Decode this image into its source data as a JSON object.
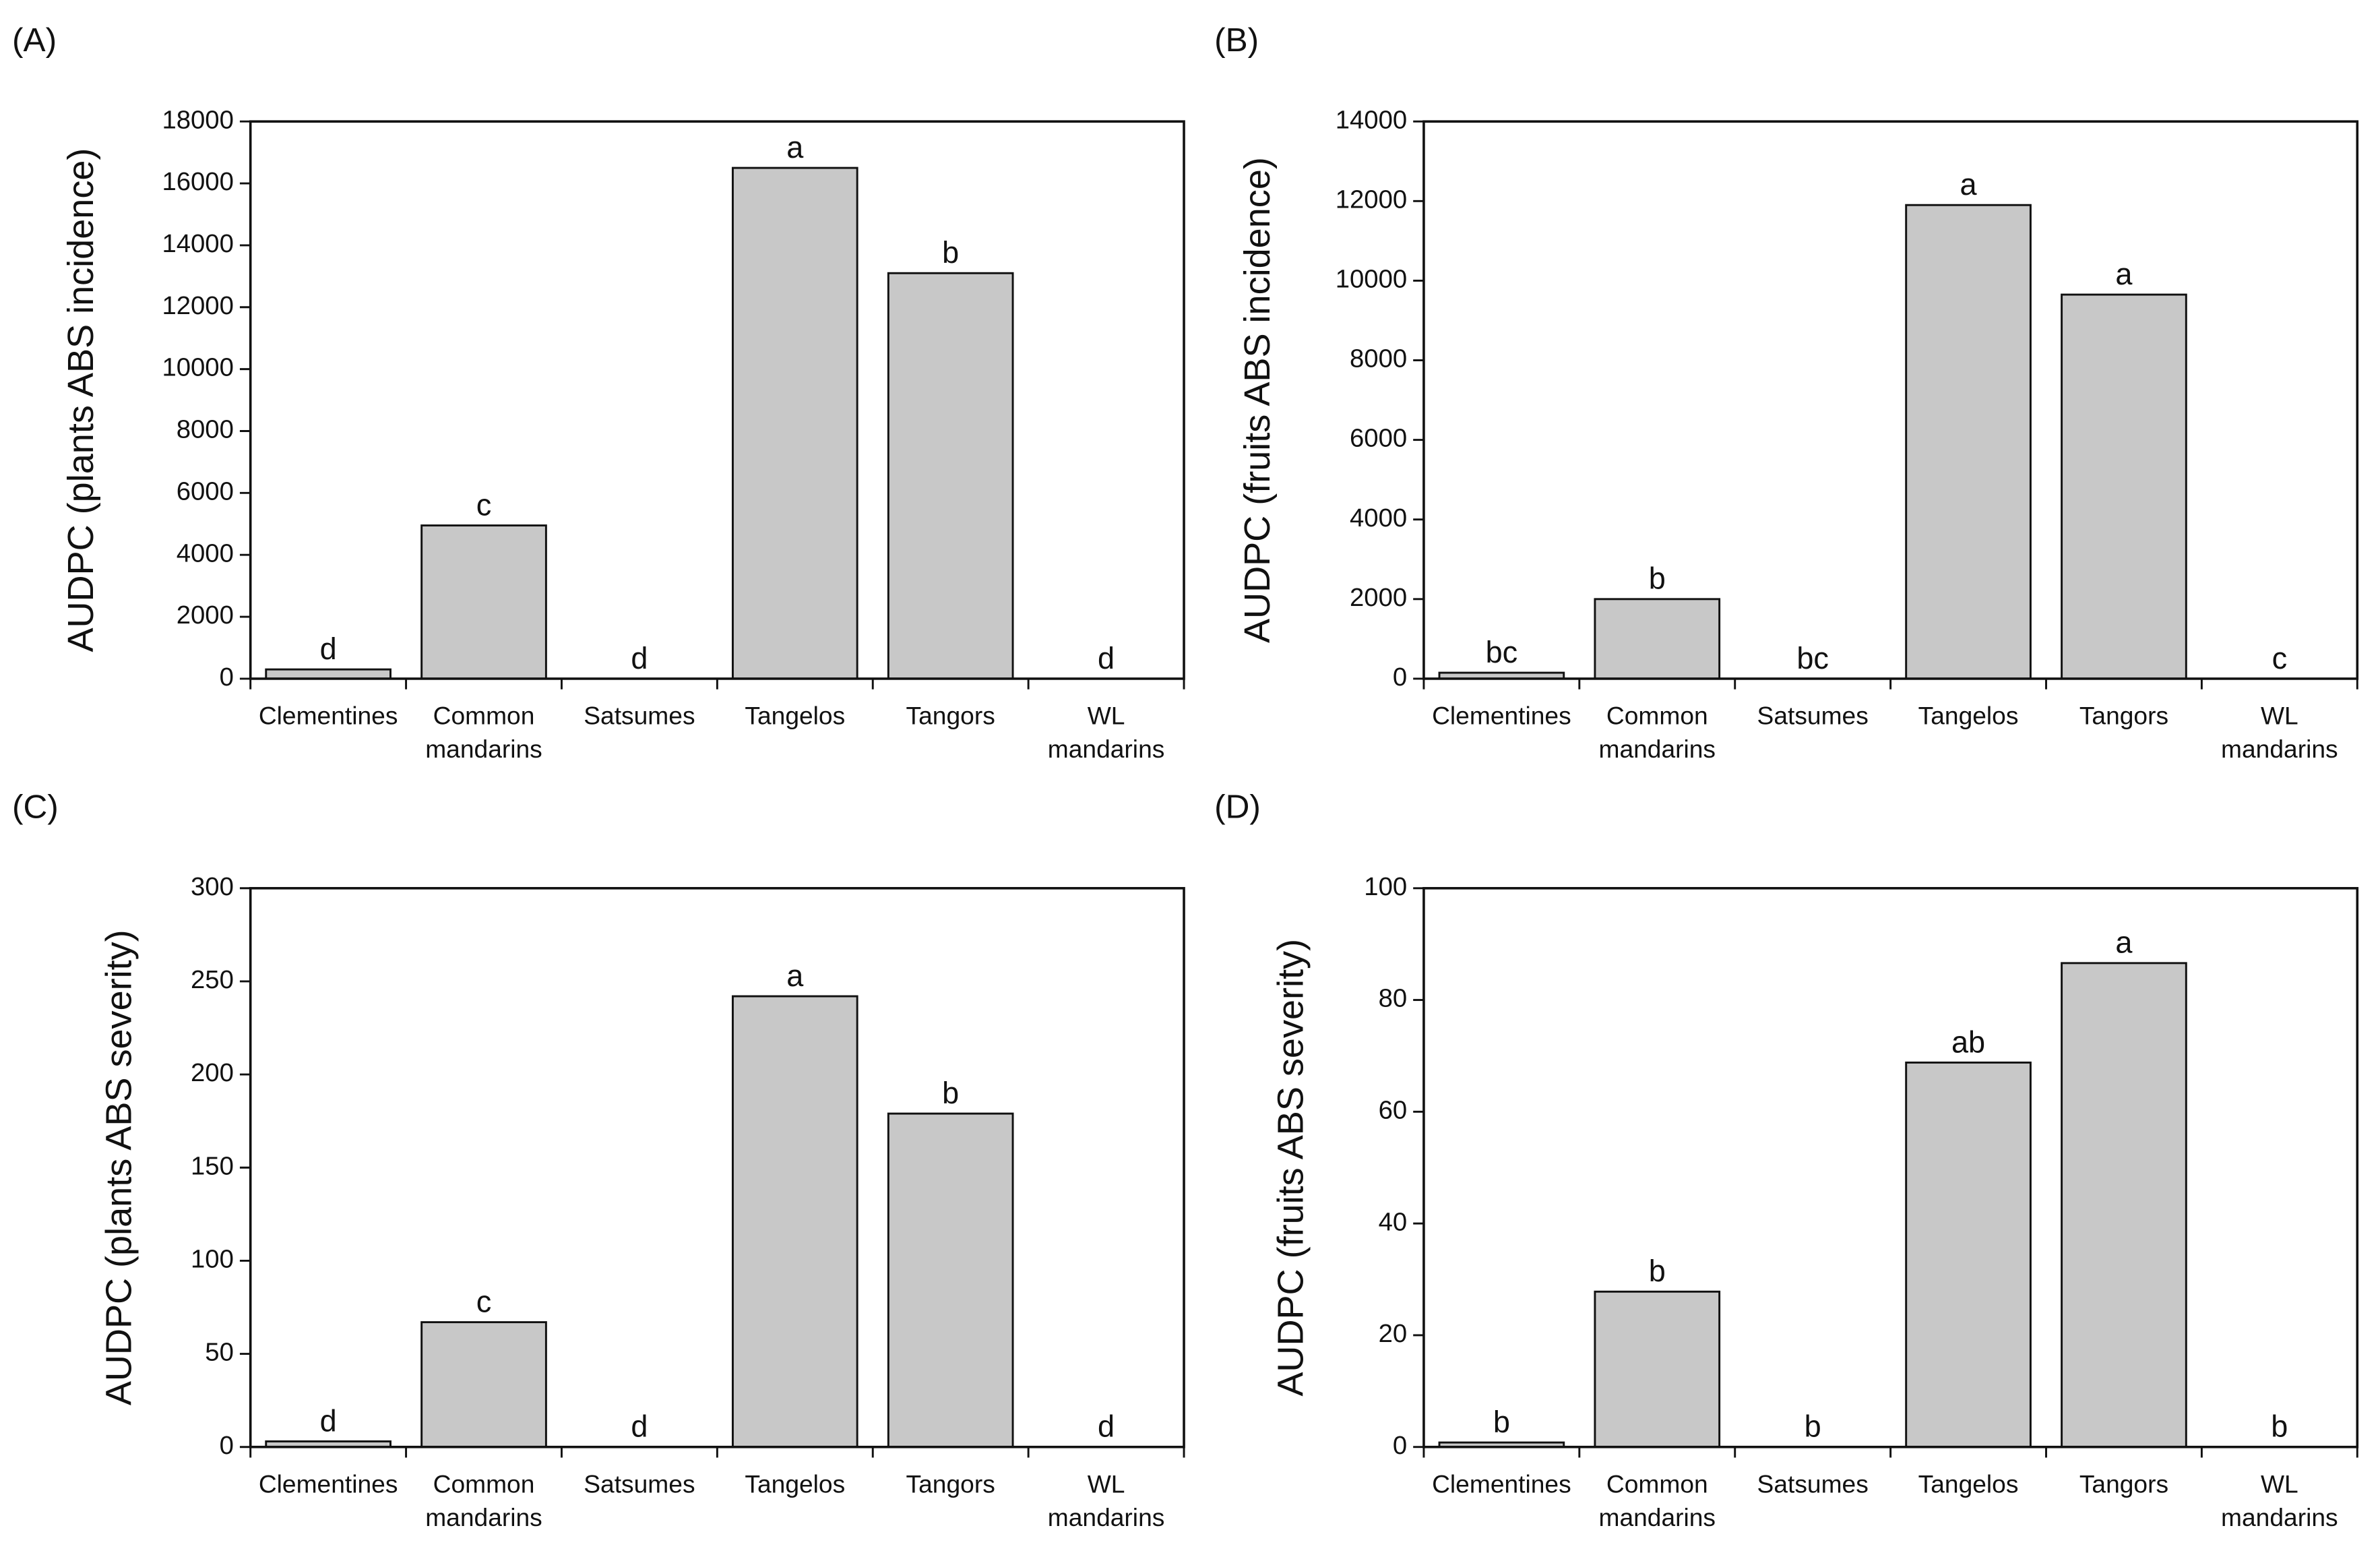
{
  "chart_data": [
    {
      "type": "bar",
      "panel_label": "(A)",
      "ylabel": "AUDPC (plants ABS incidence)",
      "categories": [
        "Clementines",
        "Common mandarins",
        "Satsumes",
        "Tangelos",
        "Tangors",
        "WL mandarins"
      ],
      "values": [
        300,
        4950,
        0,
        16500,
        13100,
        0
      ],
      "annotations": [
        "d",
        "c",
        "d",
        "a",
        "b",
        "d"
      ],
      "color": "#c8c8c8",
      "ylim": [
        0,
        18000
      ],
      "yticks": [
        0,
        2000,
        4000,
        6000,
        8000,
        10000,
        12000,
        14000,
        16000,
        18000
      ]
    },
    {
      "type": "bar",
      "panel_label": "(B)",
      "ylabel": "AUDPC (fruits ABS incidence)",
      "categories": [
        "Clementines",
        "Common mandarins",
        "Satsumes",
        "Tangelos",
        "Tangors",
        "WL mandarins"
      ],
      "values": [
        150,
        2000,
        0,
        11900,
        9650,
        0
      ],
      "annotations": [
        "bc",
        "b",
        "bc",
        "a",
        "a",
        "c"
      ],
      "color": "#c8c8c8",
      "ylim": [
        0,
        14000
      ],
      "yticks": [
        0,
        2000,
        4000,
        6000,
        8000,
        10000,
        12000,
        14000
      ]
    },
    {
      "type": "bar",
      "panel_label": "(C)",
      "ylabel": "AUDPC (plants ABS severity)",
      "categories": [
        "Clementines",
        "Common mandarins",
        "Satsumes",
        "Tangelos",
        "Tangors",
        "WL mandarins"
      ],
      "values": [
        3,
        67,
        0,
        242,
        179,
        0
      ],
      "annotations": [
        "d",
        "c",
        "d",
        "a",
        "b",
        "d"
      ],
      "color": "#c8c8c8",
      "ylim": [
        0,
        300
      ],
      "yticks": [
        0,
        50,
        100,
        150,
        200,
        250,
        300
      ]
    },
    {
      "type": "bar",
      "panel_label": "(D)",
      "ylabel": "AUDPC (fruits ABS severity)",
      "categories": [
        "Clementines",
        "Common mandarins",
        "Satsumes",
        "Tangelos",
        "Tangors",
        "WL mandarins"
      ],
      "values": [
        0.8,
        27.8,
        0,
        68.8,
        86.6,
        0
      ],
      "annotations": [
        "b",
        "b",
        "b",
        "ab",
        "a",
        "b"
      ],
      "color": "#c8c8c8",
      "ylim": [
        0,
        100
      ],
      "yticks": [
        0,
        20,
        40,
        60,
        80,
        100
      ]
    }
  ]
}
